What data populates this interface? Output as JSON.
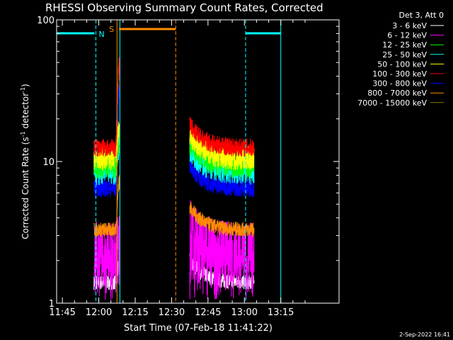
{
  "chart_data": {
    "type": "line",
    "title": "RHESSI Observing Summary Count Rates, Corrected",
    "xlabel": "Start Time (07-Feb-18 11:41:22)",
    "ylabel": "Corrected Count Rate (s",
    "ylabel_sup1": "-1",
    "ylabel_mid": " detector",
    "ylabel_sup2": "-1",
    "ylabel_end": ")",
    "y_scale": "log",
    "ylim": [
      1,
      100
    ],
    "xlim_minutes": [
      -17.37,
      99.0
    ],
    "x_ticks": [
      {
        "label": "11:45",
        "min": -15
      },
      {
        "label": "12:00",
        "min": 0
      },
      {
        "label": "12:15",
        "min": 15
      },
      {
        "label": "12:30",
        "min": 30
      },
      {
        "label": "12:45",
        "min": 45
      },
      {
        "label": "13:00",
        "min": 60
      },
      {
        "label": "13:15",
        "min": 75
      }
    ],
    "y_ticks": [
      {
        "label": "1",
        "value": 1
      },
      {
        "label": "10",
        "value": 10
      },
      {
        "label": "100",
        "value": 100
      }
    ],
    "legend_title": "Det 3, Att 0",
    "legend_position": "right",
    "series": [
      {
        "name": "3 - 6 keV",
        "color": "#ffffff",
        "level": 1.4,
        "amp": 0.12,
        "peak": 1.9
      },
      {
        "name": "6 - 12 keV",
        "color": "#ff00ff",
        "level": 2.4,
        "amp": 0.45,
        "peak": 3.0
      },
      {
        "name": "12 - 25 keV",
        "color": "#00ff00",
        "level": 9.5,
        "amp": 0.22,
        "peak": 15
      },
      {
        "name": "25 - 50 keV",
        "color": "#00ffff",
        "level": 8.5,
        "amp": 0.22,
        "peak": 14
      },
      {
        "name": "50 - 100 keV",
        "color": "#ffff00",
        "level": 10.5,
        "amp": 0.2,
        "peak": 18
      },
      {
        "name": "100 - 300 keV",
        "color": "#ff0000",
        "level": 12.5,
        "amp": 0.15,
        "peak": 60
      },
      {
        "name": "300 - 800 keV",
        "color": "#0000ff",
        "level": 6.5,
        "amp": 0.15,
        "peak": 40
      },
      {
        "name": "800 - 7000 keV",
        "color": "#ff8c00",
        "level": 3.3,
        "amp": 0.12,
        "peak": 8
      },
      {
        "name": "7000 - 15000 keV",
        "color": "#808000",
        "level": 9.0,
        "amp": 0.15,
        "peak": 12
      }
    ],
    "data_segments": [
      {
        "start_min": -2.0,
        "end_min": 8.5,
        "decay": 0
      },
      {
        "start_min": 37.5,
        "end_min": 64.0,
        "decay": 1
      }
    ],
    "flare_rise": {
      "start_min": 7.0,
      "peak_min": 8.4,
      "end_min": 8.8
    },
    "night_intervals": [
      {
        "label": "N",
        "start_min": -1.2,
        "end_min": 8.7
      },
      {
        "label": "",
        "start_min": 60.5,
        "end_min": 75.0
      }
    ],
    "saa_intervals": [
      {
        "label": "S",
        "start_min": 7.5,
        "end_min": 31.7
      }
    ],
    "night_color": "#00ffff",
    "saa_color": "#ff8c00"
  },
  "footer": {
    "date": "2-Sep-2022 16:41"
  }
}
